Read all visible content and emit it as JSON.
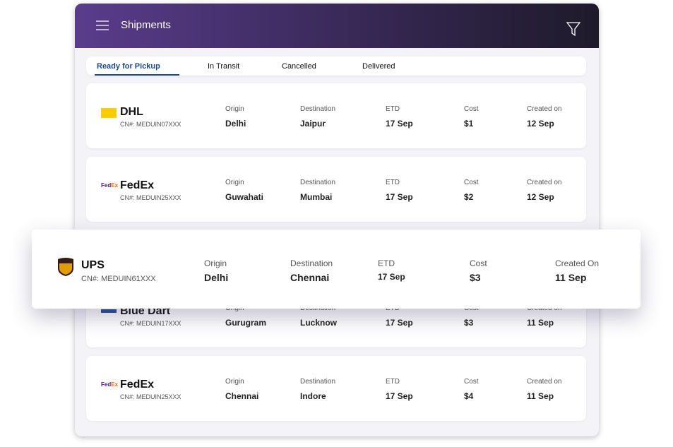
{
  "header": {
    "title": "Shipments"
  },
  "tabs": [
    "Ready for Pickup",
    "In Transit",
    "Cancelled",
    "Delivered"
  ],
  "columns": [
    "Origin",
    "Destination",
    "ETD",
    "Cost",
    "Created on"
  ],
  "shipments": [
    {
      "carrier": "DHL",
      "cn": "CN#: MEDUIN07XXX",
      "values": [
        "Delhi",
        "Jaipur",
        "17 Sep",
        "$1",
        "12 Sep"
      ]
    },
    {
      "carrier": "FedEx",
      "cn": "CN#: MEDUIN25XXX",
      "values": [
        "Guwahati",
        "Mumbai",
        "17 Sep",
        "$2",
        "12 Sep"
      ]
    },
    {
      "carrier": "Blue Dart",
      "cn": "CN#: MEDUIN17XXX",
      "values": [
        "Gurugram",
        "Lucknow",
        "17 Sep",
        "$3",
        "11 Sep"
      ]
    },
    {
      "carrier": "FedEx",
      "cn": "CN#: MEDUIN25XXX",
      "values": [
        "Chennai",
        "Indore",
        "17 Sep",
        "$4",
        "11 Sep"
      ]
    }
  ],
  "highlight": {
    "carrier": "UPS",
    "cn": "CN#: MEDUIN61XXX",
    "columns": [
      "Origin",
      "Destination",
      "ETD",
      "Cost",
      "Created On"
    ],
    "values": [
      "Delhi",
      "Chennai",
      "17 Sep",
      "$3",
      "11 Sep"
    ]
  }
}
